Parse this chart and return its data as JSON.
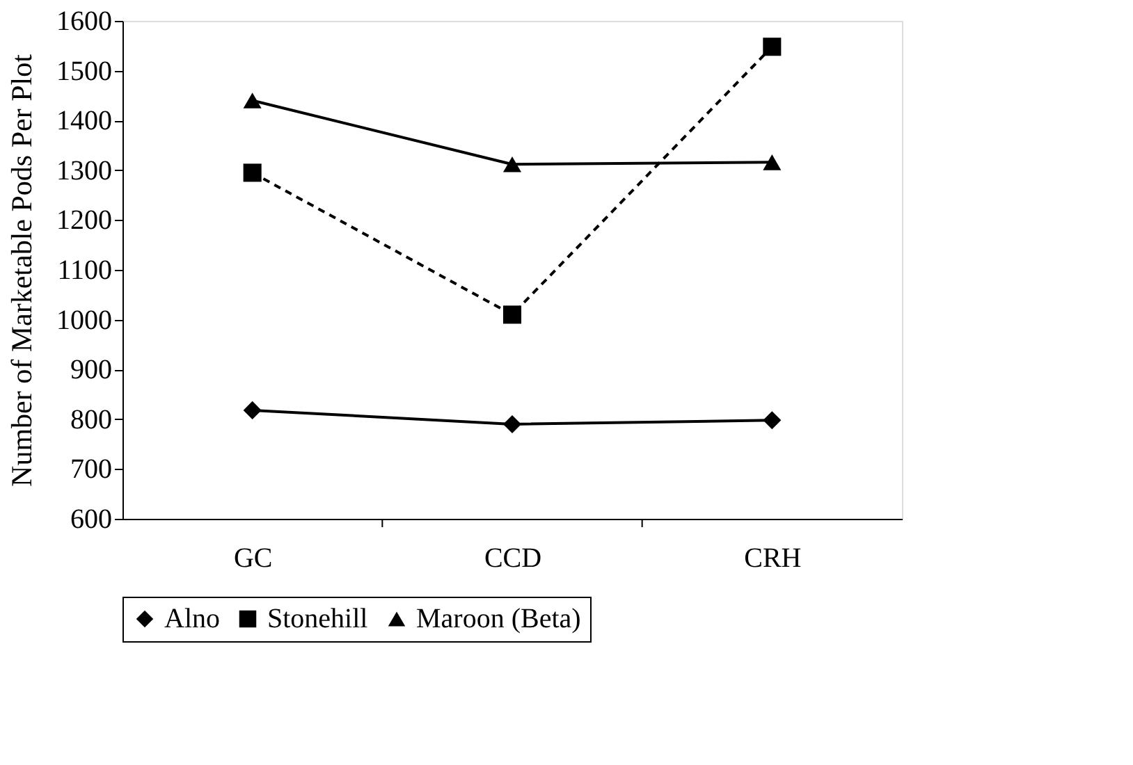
{
  "chart_data": {
    "type": "line",
    "ylabel": "Number of Marketable Pods Per Plot",
    "categories": [
      "GC",
      "CCD",
      "CRH"
    ],
    "series": [
      {
        "name": "Alno",
        "color": "#000000",
        "marker": "diamond",
        "line_style": "solid",
        "values": [
          818,
          790,
          798
        ]
      },
      {
        "name": "Stonehill",
        "color": "#000000",
        "marker": "square",
        "line_style": "dashed",
        "values": [
          1295,
          1010,
          1548
        ]
      },
      {
        "name": "Maroon (Beta)",
        "color": "#000000",
        "marker": "triangle",
        "line_style": "solid",
        "values": [
          1440,
          1312,
          1316
        ]
      }
    ],
    "ylim": [
      600,
      1600
    ],
    "yticks": [
      600,
      700,
      800,
      900,
      1000,
      1100,
      1200,
      1300,
      1400,
      1500,
      1600
    ],
    "grid": false,
    "legend": "bottom"
  }
}
